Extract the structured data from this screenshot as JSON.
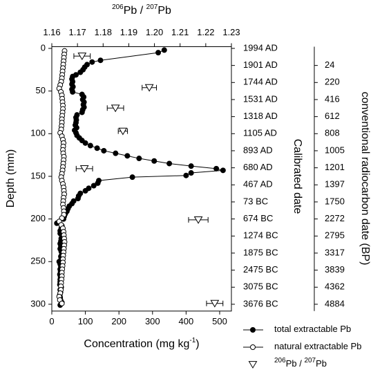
{
  "chart_data": {
    "type": "scatter",
    "x_label": [
      "Concentration (mg kg",
      "-1",
      ")"
    ],
    "x2_label": [
      "206",
      "Pb / ",
      "207",
      "Pb"
    ],
    "y_label": "Depth (mm)",
    "y2_label": "Calibrated date",
    "y3_label": "conventional radiocarbon date (BP)",
    "xlim": [
      0,
      535
    ],
    "xticks": [
      0,
      100,
      200,
      300,
      400,
      500
    ],
    "x2lim": [
      1.16,
      1.23
    ],
    "x2ticks": [
      1.16,
      1.17,
      1.18,
      1.19,
      {
        "value": 1.2,
        "label": "1.20"
      },
      1.21,
      1.22,
      1.23
    ],
    "ylim": [
      -2,
      308
    ],
    "y_inverted": true,
    "yticks": [
      0,
      50,
      100,
      150,
      200,
      250,
      300
    ],
    "y2ticks": [
      {
        "value": 0,
        "label": "1994 AD"
      },
      {
        "value": 20,
        "label": "1901 AD"
      },
      {
        "value": 40,
        "label": "1744 AD"
      },
      {
        "value": 60,
        "label": "1531 AD"
      },
      {
        "value": 80,
        "label": "1318 AD"
      },
      {
        "value": 100,
        "label": "1105 AD"
      },
      {
        "value": 120,
        "label": "893 AD"
      },
      {
        "value": 140,
        "label": "680 AD"
      },
      {
        "value": 160,
        "label": "467 AD"
      },
      {
        "value": 180,
        "label": "73 BC"
      },
      {
        "value": 200,
        "label": "674 BC"
      },
      {
        "value": 220,
        "label": "1274 BC"
      },
      {
        "value": 240,
        "label": "1875 BC"
      },
      {
        "value": 260,
        "label": "2475 BC"
      },
      {
        "value": 280,
        "label": "3075 BC"
      },
      {
        "value": 300,
        "label": "3676 BC"
      }
    ],
    "y3ticks": [
      {
        "value": 20,
        "label": "24"
      },
      {
        "value": 40,
        "label": "220"
      },
      {
        "value": 60,
        "label": "416"
      },
      {
        "value": 80,
        "label": "612"
      },
      {
        "value": 100,
        "label": "808"
      },
      {
        "value": 120,
        "label": "1005"
      },
      {
        "value": 140,
        "label": "1201"
      },
      {
        "value": 160,
        "label": "1397"
      },
      {
        "value": 180,
        "label": "1750"
      },
      {
        "value": 200,
        "label": "2272"
      },
      {
        "value": 220,
        "label": "2795"
      },
      {
        "value": 240,
        "label": "3317"
      },
      {
        "value": 260,
        "label": "3839"
      },
      {
        "value": 280,
        "label": "4362"
      },
      {
        "value": 300,
        "label": "4884"
      }
    ],
    "series": [
      {
        "name": [
          "total extractable Pb"
        ],
        "marker": "circle",
        "color": "#000000",
        "fill": "#000000",
        "line": true,
        "x": [
          335,
          317,
          145,
          120,
          105,
          98,
          93,
          85,
          72,
          62,
          60,
          62,
          60,
          63,
          60,
          62,
          90,
          95,
          92,
          96,
          94,
          96,
          92,
          90,
          75,
          72,
          73,
          72,
          70,
          74,
          68,
          72,
          75,
          82,
          90,
          100,
          115,
          135,
          155,
          190,
          225,
          260,
          305,
          350,
          415,
          490,
          510,
          415,
          400,
          240,
          140,
          137,
          125,
          110,
          100,
          85,
          80,
          78,
          65,
          60,
          52,
          48,
          45,
          40,
          37,
          35,
          15,
          30,
          28,
          25,
          25,
          30,
          28,
          27,
          25,
          27,
          25,
          28,
          30,
          27,
          28,
          22,
          25,
          27,
          25,
          26,
          24,
          26,
          25,
          25,
          24,
          28,
          25,
          26,
          24,
          25,
          26,
          30,
          25
        ],
        "y": [
          2,
          5,
          14,
          16,
          19,
          22,
          25,
          28,
          31,
          33,
          36,
          39,
          42,
          45,
          48,
          51,
          54,
          57,
          60,
          63,
          66,
          69,
          72,
          75,
          78,
          81,
          84,
          87,
          90,
          93,
          96,
          99,
          102,
          105,
          108,
          111,
          114,
          117,
          120,
          123,
          126,
          129,
          132,
          135,
          138,
          141,
          143,
          146,
          149,
          151,
          155,
          158,
          161,
          164,
          167,
          170,
          173,
          176,
          179,
          182,
          185,
          188,
          191,
          194,
          197,
          200,
          205,
          208,
          211,
          214,
          217,
          220,
          223,
          226,
          229,
          232,
          235,
          238,
          241,
          244,
          247,
          250,
          253,
          256,
          259,
          262,
          265,
          268,
          271,
          274,
          277,
          280,
          283,
          286,
          289,
          292,
          295,
          298,
          301
        ]
      },
      {
        "name": [
          "natural extractable Pb"
        ],
        "marker": "circle",
        "color": "#000000",
        "fill": "#ffffff",
        "line": true,
        "x": [
          38,
          37,
          36,
          35,
          34,
          33,
          32,
          31,
          30,
          28,
          25,
          22,
          27,
          30,
          31,
          32,
          33,
          33,
          32,
          31,
          30,
          30,
          29,
          28,
          25,
          30,
          33,
          35,
          34,
          33,
          34,
          36,
          35,
          34,
          33,
          32,
          30,
          28,
          30,
          33,
          35,
          36,
          37,
          35,
          34,
          33,
          35,
          36,
          36,
          30,
          22,
          28,
          33,
          35,
          36,
          37,
          38,
          37,
          36,
          35,
          34,
          33,
          33,
          32,
          31,
          30,
          30,
          29,
          28,
          27,
          27,
          25,
          22,
          24,
          30
        ],
        "y": [
          3,
          7,
          11,
          15,
          19,
          23,
          27,
          31,
          35,
          39,
          43,
          47,
          51,
          55,
          59,
          63,
          67,
          71,
          75,
          79,
          83,
          87,
          91,
          95,
          99,
          103,
          107,
          111,
          115,
          119,
          123,
          127,
          131,
          135,
          139,
          143,
          147,
          151,
          155,
          159,
          163,
          167,
          171,
          175,
          179,
          183,
          187,
          191,
          195,
          199,
          203,
          207,
          211,
          215,
          219,
          223,
          227,
          231,
          235,
          239,
          243,
          247,
          251,
          255,
          259,
          263,
          267,
          271,
          275,
          279,
          283,
          287,
          291,
          295,
          299
        ]
      },
      {
        "name": [
          "206",
          "Pb / ",
          "207",
          "Pb"
        ],
        "marker": "triangle-down",
        "color": "#000000",
        "fill": "#ffffff",
        "line": false,
        "axis": "x2",
        "x": [
          1.1718,
          1.198,
          1.1848,
          1.1877,
          1.1727,
          1.2171,
          1.2235
        ],
        "xerr": [
          0.0032,
          0.0028,
          0.0032,
          0.0018,
          0.0032,
          0.0038,
          0.0032
        ],
        "y": [
          9,
          46,
          70,
          97,
          141,
          201,
          299
        ]
      }
    ]
  }
}
